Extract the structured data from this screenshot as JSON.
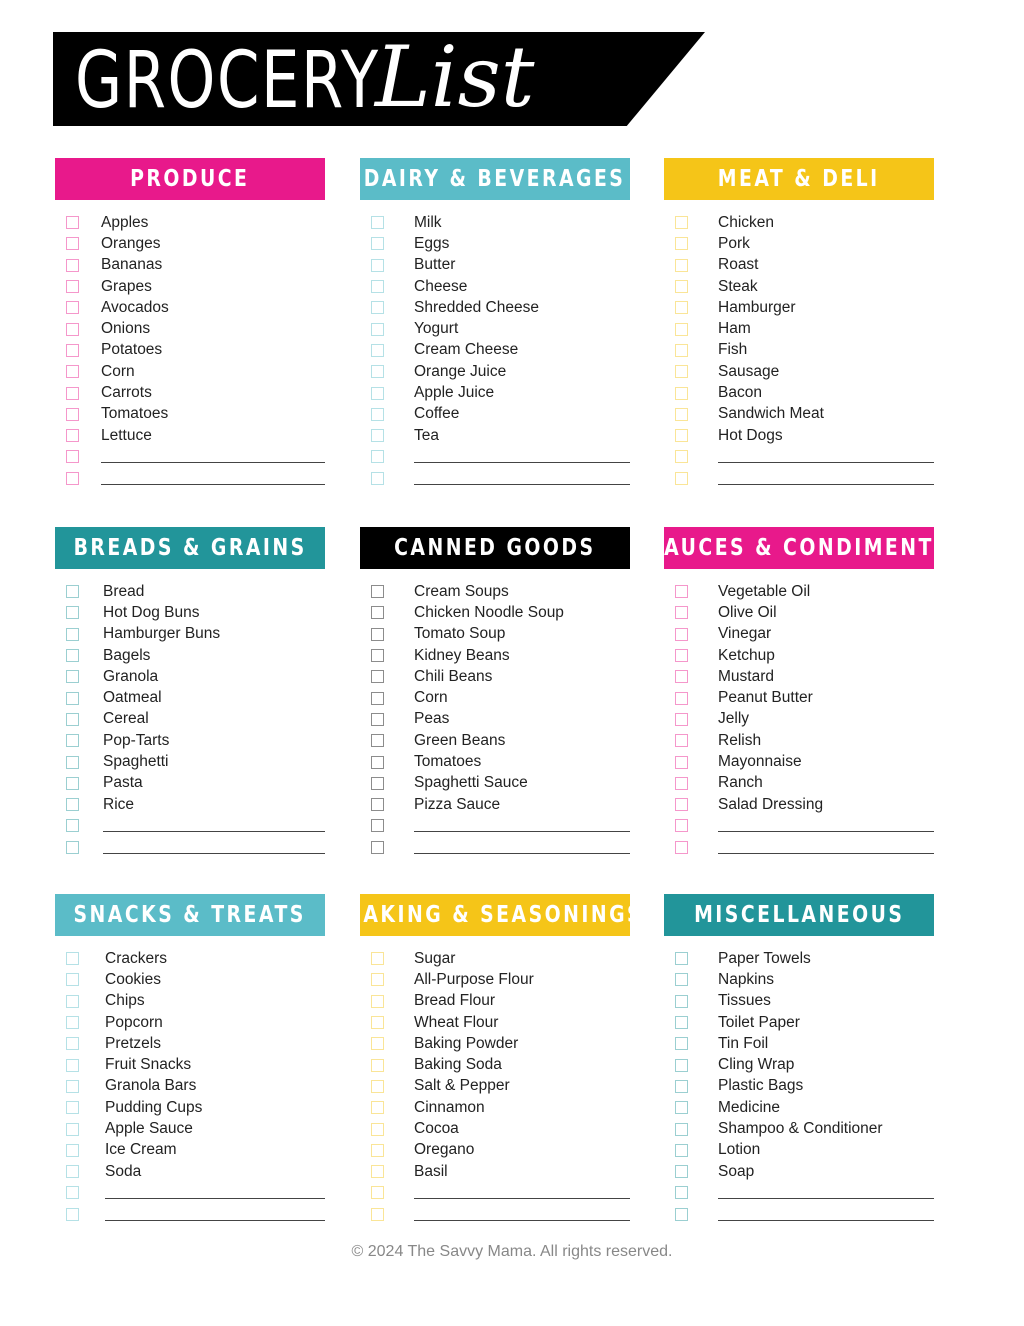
{
  "title": {
    "part1": "GROCERY",
    "part2": "List"
  },
  "sections": [
    {
      "name": "PRODUCE",
      "color": "#e8198b",
      "items": [
        "Apples",
        "Oranges",
        "Bananas",
        "Grapes",
        "Avocados",
        "Onions",
        "Potatoes",
        "Corn",
        "Carrots",
        "Tomatoes",
        "Lettuce"
      ],
      "blanks": 2
    },
    {
      "name": "DAIRY & BEVERAGES",
      "color": "#5bbcc8",
      "items": [
        "Milk",
        "Eggs",
        "Butter",
        "Cheese",
        "Shredded Cheese",
        "Yogurt",
        "Cream Cheese",
        "Orange Juice",
        "Apple Juice",
        "Coffee",
        "Tea"
      ],
      "blanks": 2
    },
    {
      "name": "MEAT & DELI",
      "color": "#f5c518",
      "items": [
        "Chicken",
        "Pork",
        "Roast",
        "Steak",
        "Hamburger",
        "Ham",
        "Fish",
        "Sausage",
        "Bacon",
        "Sandwich Meat",
        "Hot Dogs"
      ],
      "blanks": 2
    },
    {
      "name": "BREADS & GRAINS",
      "color": "#22959a",
      "items": [
        "Bread",
        "Hot Dog Buns",
        "Hamburger Buns",
        "Bagels",
        "Granola",
        "Oatmeal",
        "Cereal",
        "Pop-Tarts",
        "Spaghetti",
        "Pasta",
        "Rice"
      ],
      "blanks": 2
    },
    {
      "name": "CANNED GOODS",
      "color": "#000000",
      "items": [
        "Cream Soups",
        "Chicken Noodle Soup",
        "Tomato Soup",
        "Kidney Beans",
        "Chili Beans",
        "Corn",
        "Peas",
        "Green Beans",
        "Tomatoes",
        "Spaghetti Sauce",
        "Pizza Sauce"
      ],
      "blanks": 2
    },
    {
      "name": "SAUCES & CONDIMENTS",
      "color": "#e8198b",
      "items": [
        "Vegetable Oil",
        "Olive Oil",
        "Vinegar",
        "Ketchup",
        "Mustard",
        "Peanut Butter",
        "Jelly",
        "Relish",
        "Mayonnaise",
        "Ranch",
        "Salad Dressing"
      ],
      "blanks": 2
    },
    {
      "name": "SNACKS & TREATS",
      "color": "#5bbcc8",
      "items": [
        "Crackers",
        "Cookies",
        "Chips",
        "Popcorn",
        "Pretzels",
        "Fruit Snacks",
        "Granola Bars",
        "Pudding Cups",
        "Apple Sauce",
        "Ice Cream",
        "Soda"
      ],
      "blanks": 2
    },
    {
      "name": "BAKING & SEASONINGS",
      "color": "#f5c518",
      "items": [
        "Sugar",
        "All-Purpose Flour",
        "Bread Flour",
        "Wheat Flour",
        "Baking Powder",
        "Baking Soda",
        "Salt & Pepper",
        "Cinnamon",
        "Cocoa",
        "Oregano",
        "Basil"
      ],
      "blanks": 2
    },
    {
      "name": "MISCELLANEOUS",
      "color": "#22959a",
      "items": [
        "Paper Towels",
        "Napkins",
        "Tissues",
        "Toilet Paper",
        "Tin Foil",
        "Cling Wrap",
        "Plastic Bags",
        "Medicine",
        "Shampoo & Conditioner",
        "Lotion",
        "Soap"
      ],
      "blanks": 2
    }
  ],
  "footer": "© 2024 The Savvy Mama. All rights reserved."
}
